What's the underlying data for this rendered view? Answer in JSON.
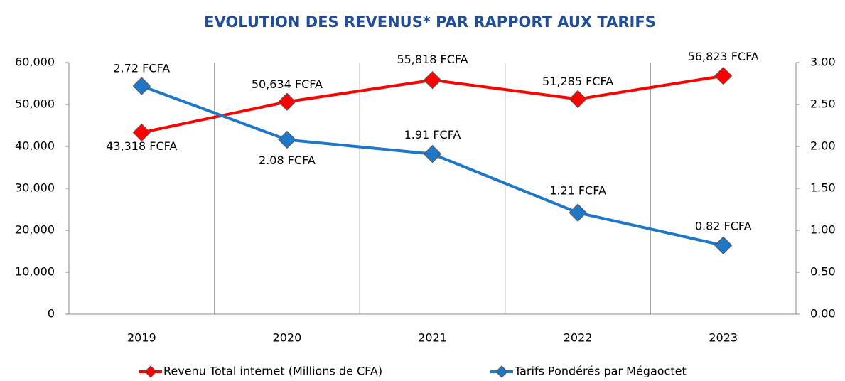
{
  "chart_data": {
    "type": "line",
    "title": "EVOLUTION DES REVENUS* PAR RAPPORT AUX TARIFS",
    "categories": [
      "2019",
      "2020",
      "2021",
      "2022",
      "2023"
    ],
    "series": [
      {
        "name": "Revenu Total internet (Millions de CFA)",
        "color": "#ff0000",
        "axis": "y",
        "values": [
          43318,
          50634,
          55818,
          51285,
          56823
        ],
        "value_labels": [
          "43,318 FCFA",
          "50,634 FCFA",
          "55,818 FCFA",
          "51,285 FCFA",
          "56,823 FCFA"
        ]
      },
      {
        "name": "Tarifs Pondérés par Mégaoctet",
        "color": "#1f77c8",
        "axis": "y2",
        "values": [
          2.72,
          2.08,
          1.91,
          1.21,
          0.82
        ],
        "value_labels": [
          "2.72 FCFA",
          "2.08 FCFA",
          "1.91 FCFA",
          "1.21 FCFA",
          "0.82 FCFA"
        ]
      }
    ],
    "ylim": [
      0,
      60000
    ],
    "yticks": [
      0,
      {
        "value": 10000,
        "label": "10,000"
      },
      {
        "value": 20000,
        "label": "20,000"
      },
      {
        "value": 30000,
        "label": "30,000"
      },
      {
        "value": 40000,
        "label": "40,000"
      },
      {
        "value": 50000,
        "label": "50,000"
      },
      {
        "value": 60000,
        "label": "60,000"
      }
    ],
    "y2lim": [
      0,
      3
    ],
    "y2ticks": [
      {
        "value": 0,
        "label": "0.00"
      },
      {
        "value": 0.5,
        "label": "0.50"
      },
      {
        "value": 1,
        "label": "1.00"
      },
      {
        "value": 1.5,
        "label": "1.50"
      },
      {
        "value": 2,
        "label": "2.00"
      },
      {
        "value": 2.5,
        "label": "2.50"
      },
      {
        "value": 3,
        "label": "3.00"
      }
    ],
    "legend": "bottom"
  }
}
